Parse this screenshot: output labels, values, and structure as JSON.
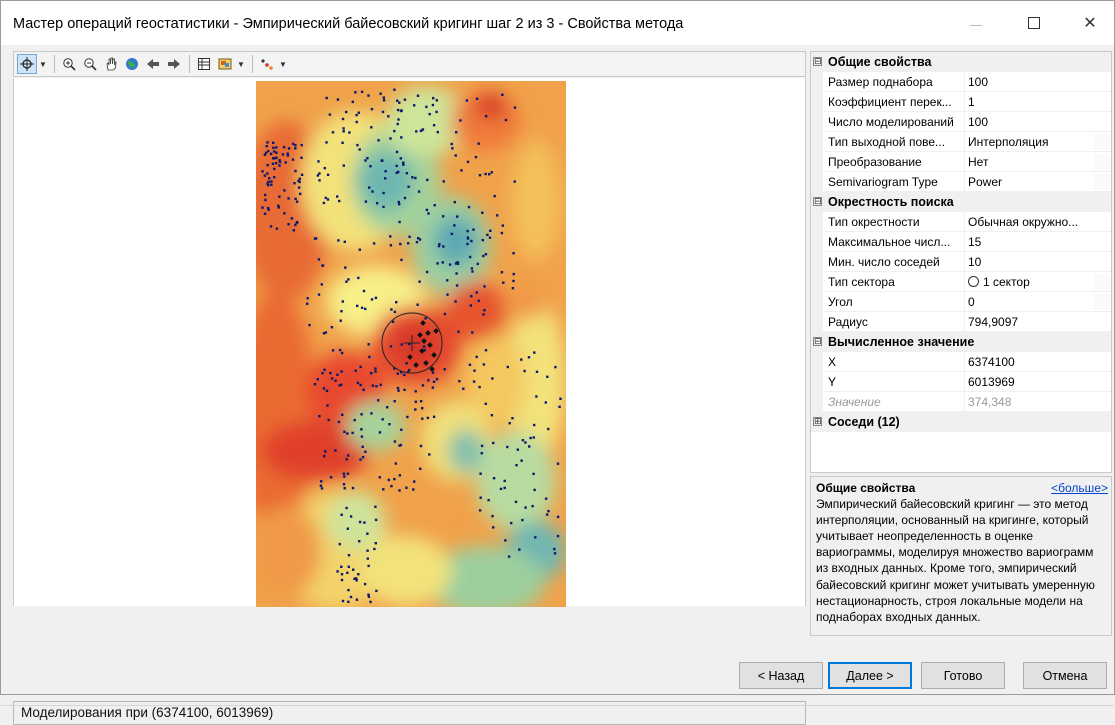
{
  "window": {
    "title": "Мастер операций геостатистики - Эмпирический байесовский кригинг шаг 2 из 3 - Свойства метода",
    "close_glyph": "✕"
  },
  "toolbar": {
    "icons": [
      "select-pointer-icon",
      "dropdown-arrow-icon",
      "zoom-in-icon",
      "zoom-out-icon",
      "pan-hand-icon",
      "full-extent-globe-icon",
      "back-arrow-icon",
      "forward-arrow-icon",
      "table-icon",
      "layers-icon",
      "dropdown-arrow-icon",
      "symbology-icon",
      "dropdown-arrow-icon"
    ]
  },
  "status": {
    "text": "Моделирования при (6374100, 6013969)"
  },
  "properties": {
    "general": {
      "label": "Общие свойства",
      "toggle": "⊟",
      "rows": [
        {
          "name": "Размер поднабора",
          "value": "100"
        },
        {
          "name": "Коэффициент перек...",
          "value": "1"
        },
        {
          "name": "Число моделирований",
          "value": "100"
        },
        {
          "name": "Тип выходной пове...",
          "value": "Интерполяция"
        },
        {
          "name": "Преобразование",
          "value": "Нет"
        },
        {
          "name": "Semivariogram Type",
          "value": "Power"
        }
      ]
    },
    "neighborhood": {
      "label": "Окрестность поиска",
      "toggle": "⊟",
      "rows": [
        {
          "name": "Тип окрестности",
          "value": "Обычная окружно..."
        },
        {
          "name": "Максимальное числ...",
          "value": "15"
        },
        {
          "name": "Мин. число соседей",
          "value": "10"
        },
        {
          "name": "Тип сектора",
          "value": "1 сектор"
        },
        {
          "name": "Угол",
          "value": "0"
        },
        {
          "name": "Радиус",
          "value": "794,9097"
        }
      ]
    },
    "computed": {
      "label": "Вычисленное значение",
      "toggle": "⊟",
      "rows": [
        {
          "name": "X",
          "value": "6374100"
        },
        {
          "name": "Y",
          "value": "6013969"
        },
        {
          "name": "Значение",
          "value": "374,348"
        }
      ]
    },
    "neighbors": {
      "label": "Соседи (12)",
      "toggle": "⊞"
    }
  },
  "description": {
    "title": "Общие свойства",
    "more_link": "<больше>",
    "text": "Эмпирический байесовский кригинг — это метод интерполяции, основанный на кригинге, который учитывает неопределенность в оценке вариограммы, моделируя множество вариограмм из входных данных. Кроме того, эмпирический байесовский кригинг может учитывать умеренную нестационарность, строя локальные модели на поднаборах входных данных."
  },
  "buttons": {
    "back": "< Назад",
    "next": "Далее >",
    "finish": "Готово",
    "cancel": "Отмена"
  },
  "colors": {
    "accent": "#0078d7",
    "link": "#0044cc",
    "point": "#0a1a6e"
  }
}
